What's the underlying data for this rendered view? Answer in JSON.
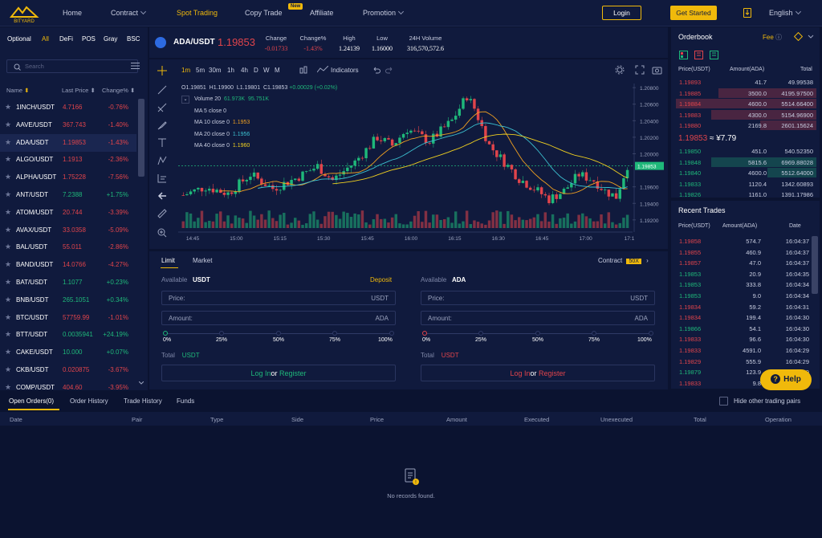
{
  "header": {
    "logo_text": "BITYARD",
    "nav": [
      {
        "label": "Home",
        "caret": false
      },
      {
        "label": "Contract",
        "caret": true
      },
      {
        "label": "Spot Trading",
        "caret": false,
        "active": true
      },
      {
        "label": "Copy Trade",
        "caret": false,
        "badge": "New"
      },
      {
        "label": "Affiliate",
        "caret": false
      },
      {
        "label": "Promotion",
        "caret": true
      }
    ],
    "login": "Login",
    "get_started": "Get Started",
    "language": "English"
  },
  "markets": {
    "tabs": [
      "Optional",
      "All",
      "DeFi",
      "POS",
      "Gray",
      "BSC"
    ],
    "active_tab": "All",
    "search_placeholder": "Search",
    "columns": {
      "name": "Name",
      "last_price": "Last Price",
      "change": "Change%"
    },
    "pairs": [
      {
        "name": "1INCH/USDT",
        "price": "4.7166",
        "change": "-0.76%",
        "dir": "down"
      },
      {
        "name": "AAVE/USDT",
        "price": "367.743",
        "change": "-1.40%",
        "dir": "down"
      },
      {
        "name": "ADA/USDT",
        "price": "1.19853",
        "change": "-1.43%",
        "dir": "down",
        "selected": true
      },
      {
        "name": "ALGO/USDT",
        "price": "1.1913",
        "change": "-2.36%",
        "dir": "down"
      },
      {
        "name": "ALPHA/USDT",
        "price": "1.75228",
        "change": "-7.56%",
        "dir": "down"
      },
      {
        "name": "ANT/USDT",
        "price": "7.2388",
        "change": "+1.75%",
        "dir": "up"
      },
      {
        "name": "ATOM/USDT",
        "price": "20.744",
        "change": "-3.39%",
        "dir": "down"
      },
      {
        "name": "AVAX/USDT",
        "price": "33.0358",
        "change": "-5.09%",
        "dir": "down"
      },
      {
        "name": "BAL/USDT",
        "price": "55.011",
        "change": "-2.86%",
        "dir": "down"
      },
      {
        "name": "BAND/USDT",
        "price": "14.0766",
        "change": "-4.27%",
        "dir": "down"
      },
      {
        "name": "BAT/USDT",
        "price": "1.1077",
        "change": "+0.23%",
        "dir": "up"
      },
      {
        "name": "BNB/USDT",
        "price": "265.1051",
        "change": "+0.34%",
        "dir": "up"
      },
      {
        "name": "BTC/USDT",
        "price": "57759.99",
        "change": "-1.01%",
        "dir": "down"
      },
      {
        "name": "BTT/USDT",
        "price": "0.0035941",
        "change": "+24.19%",
        "dir": "up"
      },
      {
        "name": "CAKE/USDT",
        "price": "10.000",
        "change": "+0.07%",
        "dir": "up"
      },
      {
        "name": "CKB/USDT",
        "price": "0.020875",
        "change": "-3.67%",
        "dir": "down"
      },
      {
        "name": "COMP/USDT",
        "price": "404.60",
        "change": "-3.95%",
        "dir": "down"
      }
    ]
  },
  "ticker": {
    "pair": "ADA/USDT",
    "last": "1.19853",
    "stats": [
      {
        "label": "Change",
        "value": "-0.01733",
        "dir": "down"
      },
      {
        "label": "Change%",
        "value": "-1.43%",
        "dir": "down"
      },
      {
        "label": "High",
        "value": "1.24139",
        "dir": "neutral"
      },
      {
        "label": "Low",
        "value": "1.16000",
        "dir": "neutral"
      },
      {
        "label": "24H Volume",
        "value": "316,570,572.6",
        "dir": "neutral"
      }
    ]
  },
  "chart": {
    "timeframes": [
      "1m",
      "5m",
      "30m",
      "1h",
      "4h",
      "D",
      "W",
      "M"
    ],
    "active_tf": "1m",
    "indicators_label": "Indicators",
    "ohlc": {
      "o": "O1.19851",
      "h": "H1.19900",
      "l": "L1.19801",
      "c": "C1.19853",
      "chg": "+0.00029 (+0.02%)"
    },
    "volume_legend": {
      "label": "Volume 20",
      "v1": "61.973K",
      "v2": "95.751K"
    },
    "ma_legend": [
      {
        "label": "MA 5 close 0",
        "value": "",
        "color": "#2d6ae0"
      },
      {
        "label": "MA 10 close 0",
        "value": "1.1953",
        "color": "#f0a020"
      },
      {
        "label": "MA 20 close 0",
        "value": "1.1956",
        "color": "#3cc0d0"
      },
      {
        "label": "MA 40 close 0",
        "value": "1.1960",
        "color": "#f0d020"
      }
    ],
    "price_axis": [
      "1.20800",
      "1.20600",
      "1.20400",
      "1.20200",
      "1.20000",
      "1.19853",
      "1.19600",
      "1.19400",
      "1.19200"
    ],
    "time_axis": [
      "14:45",
      "15:00",
      "15:15",
      "15:30",
      "15:45",
      "16:00",
      "16:15",
      "16:30",
      "16:45",
      "17:00",
      "17:1"
    ],
    "current_price": "1.19853",
    "colors": {
      "up": "#1fb87a",
      "down": "#e0444b"
    }
  },
  "order_form": {
    "tabs": [
      "Limit",
      "Market"
    ],
    "active_tab": "Limit",
    "contract_label": "Contract",
    "leverage": "50X",
    "buy": {
      "available_label": "Available",
      "currency": "USDT",
      "deposit": "Deposit",
      "price_ph": "Price:",
      "price_unit": "USDT",
      "amount_ph": "Amount:",
      "amount_unit": "ADA",
      "total_label": "Total",
      "total_unit": "USDT",
      "login": "Log In",
      "or": "or",
      "register": "Register"
    },
    "sell": {
      "available_label": "Available",
      "currency": "ADA",
      "price_ph": "Price:",
      "price_unit": "USDT",
      "amount_ph": "Amount:",
      "amount_unit": "ADA",
      "total_label": "Total",
      "total_unit": "USDT",
      "login": "Log In",
      "or": "or",
      "register": "Register"
    },
    "percents": [
      "0%",
      "25%",
      "50%",
      "75%",
      "100%"
    ]
  },
  "orderbook": {
    "title": "Orderbook",
    "fee_label": "Fee",
    "columns": {
      "price": "Price(USDT)",
      "amount": "Amount(ADA)",
      "total": "Total"
    },
    "asks": [
      {
        "price": "1.19893",
        "amount": "41.7",
        "total": "49.99538",
        "depth": 0
      },
      {
        "price": "1.19885",
        "amount": "3500.0",
        "total": "4195.97500",
        "depth": 0.7
      },
      {
        "price": "1.19884",
        "amount": "4600.0",
        "total": "5514.66400",
        "depth": 1.0
      },
      {
        "price": "1.19883",
        "amount": "4300.0",
        "total": "5154.96900",
        "depth": 0.75
      },
      {
        "price": "1.19880",
        "amount": "2169.8",
        "total": "2601.15624",
        "depth": 0.4
      }
    ],
    "mid_price": "1.19853",
    "mid_fiat": "≈ ¥7.79",
    "bids": [
      {
        "price": "1.19850",
        "amount": "451.0",
        "total": "540.52350",
        "depth": 0
      },
      {
        "price": "1.19848",
        "amount": "5815.6",
        "total": "6969.88028",
        "depth": 0.75
      },
      {
        "price": "1.19840",
        "amount": "4600.0",
        "total": "5512.64000",
        "depth": 0.35
      },
      {
        "price": "1.19833",
        "amount": "1120.4",
        "total": "1342.60893",
        "depth": 0
      },
      {
        "price": "1.19826",
        "amount": "1161.0",
        "total": "1391.17986",
        "depth": 0
      }
    ]
  },
  "recent_trades": {
    "title": "Recent Trades",
    "columns": {
      "price": "Price(USDT)",
      "amount": "Amount(ADA)",
      "date": "Date"
    },
    "rows": [
      {
        "price": "1.19858",
        "amount": "574.7",
        "date": "16:04:37",
        "dir": "down"
      },
      {
        "price": "1.19855",
        "amount": "460.9",
        "date": "16:04:37",
        "dir": "down"
      },
      {
        "price": "1.19857",
        "amount": "47.0",
        "date": "16:04:37",
        "dir": "down"
      },
      {
        "price": "1.19853",
        "amount": "20.9",
        "date": "16:04:35",
        "dir": "up"
      },
      {
        "price": "1.19853",
        "amount": "333.8",
        "date": "16:04:34",
        "dir": "up"
      },
      {
        "price": "1.19853",
        "amount": "9.0",
        "date": "16:04:34",
        "dir": "up"
      },
      {
        "price": "1.19834",
        "amount": "59.2",
        "date": "16:04:31",
        "dir": "down"
      },
      {
        "price": "1.19834",
        "amount": "199.4",
        "date": "16:04:30",
        "dir": "down"
      },
      {
        "price": "1.19866",
        "amount": "54.1",
        "date": "16:04:30",
        "dir": "up"
      },
      {
        "price": "1.19833",
        "amount": "96.6",
        "date": "16:04:30",
        "dir": "down"
      },
      {
        "price": "1.19833",
        "amount": "4591.0",
        "date": "16:04:29",
        "dir": "down"
      },
      {
        "price": "1.19829",
        "amount": "555.9",
        "date": "16:04:29",
        "dir": "down"
      },
      {
        "price": "1.19879",
        "amount": "123.9",
        "date": "16:04:29",
        "dir": "up"
      },
      {
        "price": "1.19833",
        "amount": "9.8",
        "date": "16:04:2",
        "dir": "down"
      }
    ]
  },
  "help": {
    "label": "Help"
  },
  "bottom": {
    "tabs": [
      "Open Orders(0)",
      "Order History",
      "Trade History",
      "Funds"
    ],
    "hide_pairs_label": "Hide other trading pairs",
    "columns": [
      "Date",
      "Pair",
      "Type",
      "Side",
      "Price",
      "Amount",
      "Executed",
      "Unexecuted",
      "Total",
      "Operation"
    ],
    "empty_text": "No records found."
  }
}
